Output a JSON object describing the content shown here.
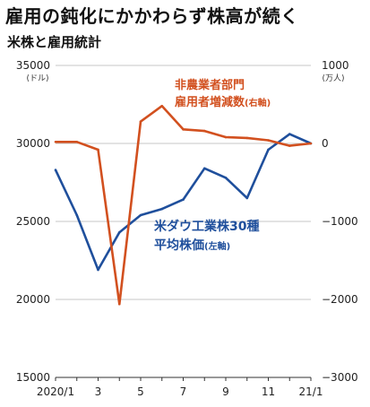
{
  "title": "雇用の鈍化にかかわらず株高が続く",
  "subtitle": "米株と雇用統計",
  "chart_data": {
    "type": "line",
    "x": [
      "2020/1",
      "2020/2",
      "2020/3",
      "2020/4",
      "2020/5",
      "2020/6",
      "2020/7",
      "2020/8",
      "2020/9",
      "2020/10",
      "2020/11",
      "2020/12",
      "2021/1"
    ],
    "x_tick_labels": [
      {
        "index": 0,
        "label": "2020/1"
      },
      {
        "index": 2,
        "label": "3"
      },
      {
        "index": 4,
        "label": "5"
      },
      {
        "index": 6,
        "label": "7"
      },
      {
        "index": 8,
        "label": "9"
      },
      {
        "index": 10,
        "label": "11"
      },
      {
        "index": 12,
        "label": "21/1"
      }
    ],
    "y_left": {
      "unit": "(ドル)",
      "range": [
        15000,
        35000
      ],
      "ticks": [
        "35000",
        "30000",
        "25000",
        "20000",
        "15000"
      ],
      "tick_values": [
        35000,
        30000,
        25000,
        20000,
        15000
      ]
    },
    "y_right": {
      "unit": "(万人)",
      "range": [
        -3000,
        1000
      ],
      "ticks": [
        "1000",
        "0",
        "−1000",
        "−2000",
        "−3000"
      ],
      "tick_values": [
        1000,
        0,
        -1000,
        -2000,
        -3000
      ]
    },
    "series": [
      {
        "label_main": "米ダウ工業株30種",
        "label_sub": "平均株価",
        "label_axis": "(左軸)",
        "axis": "left",
        "color": "#1f4f9c",
        "values": [
          28300,
          25400,
          21900,
          24300,
          25400,
          25800,
          26400,
          28400,
          27800,
          26500,
          29600,
          30600,
          30000
        ]
      },
      {
        "label_main": "非農業者部門",
        "label_sub": "雇用者増減数",
        "label_axis": "(右軸)",
        "axis": "right",
        "color": "#d2501f",
        "values": [
          20,
          20,
          -80,
          -2060,
          280,
          480,
          180,
          160,
          80,
          70,
          40,
          -30,
          0
        ]
      }
    ]
  }
}
